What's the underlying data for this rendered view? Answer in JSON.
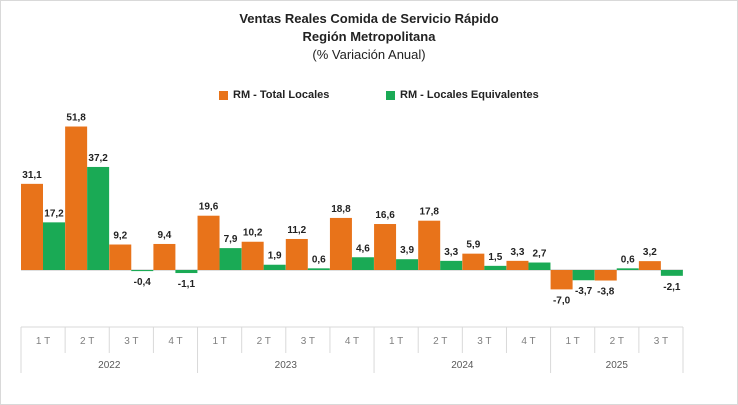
{
  "chart_data": {
    "type": "bar",
    "title": "Ventas Reales Comida de Servicio Rápido",
    "subtitle": "Región Metropolitana",
    "subtitle2": "(% Variación Anual)",
    "legend_position": "top-center",
    "categories": [
      {
        "quarter": "1 T",
        "year": "2022"
      },
      {
        "quarter": "2 T",
        "year": "2022"
      },
      {
        "quarter": "3 T",
        "year": "2022"
      },
      {
        "quarter": "4 T",
        "year": "2022"
      },
      {
        "quarter": "1 T",
        "year": "2023"
      },
      {
        "quarter": "2 T",
        "year": "2023"
      },
      {
        "quarter": "3 T",
        "year": "2023"
      },
      {
        "quarter": "4 T",
        "year": "2023"
      },
      {
        "quarter": "1 T",
        "year": "2024"
      },
      {
        "quarter": "2 T",
        "year": "2024"
      },
      {
        "quarter": "3 T",
        "year": "2024"
      },
      {
        "quarter": "4 T",
        "year": "2024"
      },
      {
        "quarter": "1 T",
        "year": "2025"
      },
      {
        "quarter": "2 T",
        "year": "2025"
      },
      {
        "quarter": "3 T",
        "year": "2025"
      }
    ],
    "years": [
      "2022",
      "2023",
      "2024",
      "2025"
    ],
    "series": [
      {
        "name": "RM - Total Locales",
        "color": "#e8731a",
        "values": [
          31.1,
          51.8,
          9.2,
          9.4,
          19.6,
          10.2,
          11.2,
          18.8,
          16.6,
          17.8,
          5.9,
          3.3,
          -7.0,
          -3.8,
          3.2
        ],
        "labels": [
          "31,1",
          "51,8",
          "9,2",
          "9,4",
          "19,6",
          "10,2",
          "11,2",
          "18,8",
          "16,6",
          "17,8",
          "5,9",
          "3,3",
          "-7,0",
          "-3,8",
          "3,2"
        ]
      },
      {
        "name": "RM - Locales Equivalentes",
        "color": "#1aaa55",
        "values": [
          17.2,
          37.2,
          -0.4,
          -1.1,
          7.9,
          1.9,
          0.6,
          4.6,
          3.9,
          3.3,
          1.5,
          2.7,
          -3.7,
          0.6,
          -2.1
        ],
        "labels": [
          "17,2",
          "37,2",
          "-0,4",
          "-1,1",
          "7,9",
          "1,9",
          "0,6",
          "4,6",
          "3,9",
          "3,3",
          "1,5",
          "2,7",
          "-3,7",
          "0,6",
          "-2,1"
        ]
      }
    ],
    "ylim": [
      -12,
      55
    ],
    "grid": false
  }
}
